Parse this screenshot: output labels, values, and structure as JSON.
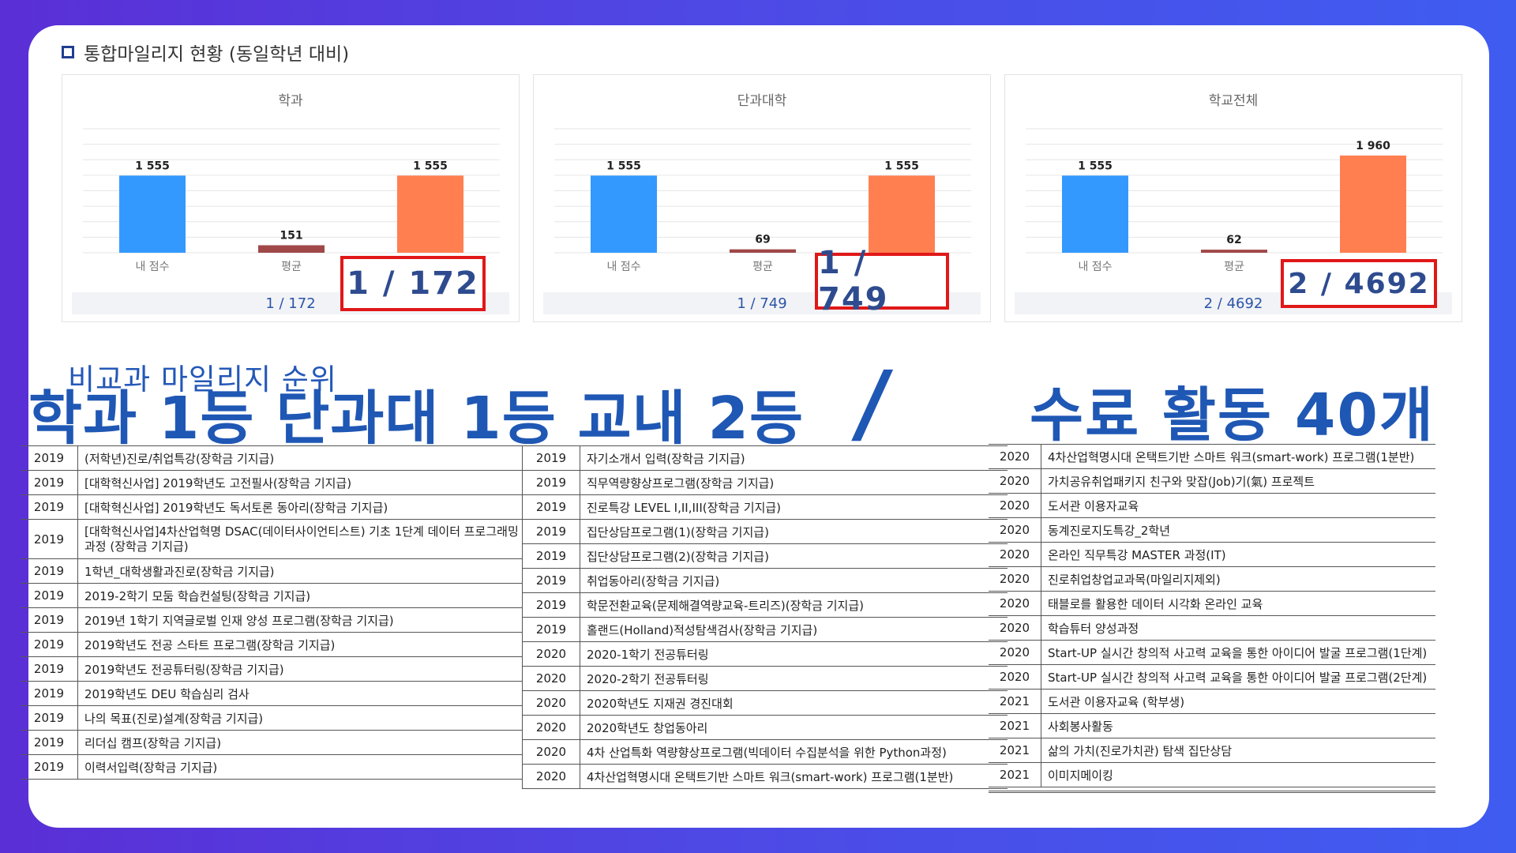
{
  "header": {
    "title": "통합마일리지 현황 (동일학년 대비)"
  },
  "panels": [
    {
      "title": "학과",
      "categories": [
        "내 점수",
        "평균",
        ""
      ],
      "values": [
        1555,
        151,
        1555
      ],
      "value_labels": [
        "1 555",
        "151",
        "1 555"
      ],
      "footer": "1 / 172",
      "rank": "1 / 172"
    },
    {
      "title": "단과대학",
      "categories": [
        "내 점수",
        "평균",
        ""
      ],
      "values": [
        1555,
        69,
        1555
      ],
      "value_labels": [
        "1 555",
        "69",
        "1 555"
      ],
      "footer": "1 / 749",
      "rank": "1 / 749"
    },
    {
      "title": "학교전체",
      "categories": [
        "내 점수",
        "평균",
        ""
      ],
      "values": [
        1555,
        62,
        1960
      ],
      "value_labels": [
        "1 555",
        "62",
        "1 960"
      ],
      "footer": "2 / 4692",
      "rank": "2 / 4692"
    }
  ],
  "chart_data": [
    {
      "type": "bar",
      "title": "학과",
      "categories": [
        "내 점수",
        "평균",
        ""
      ],
      "values": [
        1555,
        151,
        1555
      ],
      "colors": [
        "#3399ff",
        "#a04848",
        "#ff7f50"
      ]
    },
    {
      "type": "bar",
      "title": "단과대학",
      "categories": [
        "내 점수",
        "평균",
        ""
      ],
      "values": [
        1555,
        69,
        1555
      ],
      "colors": [
        "#3399ff",
        "#a04848",
        "#ff7f50"
      ]
    },
    {
      "type": "bar",
      "title": "학교전체",
      "categories": [
        "내 점수",
        "평균",
        ""
      ],
      "values": [
        1555,
        62,
        1960
      ],
      "colors": [
        "#3399ff",
        "#a04848",
        "#ff7f50"
      ]
    }
  ],
  "colors": {
    "mine": "#3399ff",
    "avg": "#a04848",
    "top": "#ff7f50",
    "accent": "#1f57b4",
    "rank_border": "#e01818"
  },
  "subheading": "비교과 마일리지 순위",
  "headline": "학과 1등 단과대 1등 교내 2등",
  "slash": "/",
  "headline_right": "수료 활동 40개",
  "activities_col1": [
    {
      "year": "2019",
      "name": "(저학년)진로/취업특강(장학금 기지급)"
    },
    {
      "year": "2019",
      "name": "[대학혁신사업] 2019학년도 고전필사(장학금 기지급)"
    },
    {
      "year": "2019",
      "name": "[대학혁신사업] 2019학년도 독서토론 동아리(장학금 기지급)"
    },
    {
      "year": "2019",
      "name": "[대학혁신사업]4차산업혁명 DSAC(데이터사이언티스트) 기초 1단계 데이터 프로그래밍 과정 (장학금 기지급)"
    },
    {
      "year": "2019",
      "name": "1학년_대학생활과진로(장학금 기지급)"
    },
    {
      "year": "2019",
      "name": "2019-2학기 모둠 학습컨설팅(장학금 기지급)"
    },
    {
      "year": "2019",
      "name": "2019년 1학기 지역글로벌 인재 양성 프로그램(장학금 기지급)"
    },
    {
      "year": "2019",
      "name": "2019학년도 전공 스타트 프로그램(장학금 기지급)"
    },
    {
      "year": "2019",
      "name": "2019학년도 전공튜터링(장학금 기지급)"
    },
    {
      "year": "2019",
      "name": "2019학년도 DEU 학습심리 검사"
    },
    {
      "year": "2019",
      "name": "나의 목표(진로)설계(장학금 기지급)"
    },
    {
      "year": "2019",
      "name": "리더십 캠프(장학금 기지급)"
    },
    {
      "year": "2019",
      "name": "이력서입력(장학금 기지급)"
    }
  ],
  "activities_col2": [
    {
      "year": "2019",
      "name": "자기소개서 입력(장학금 기지급)"
    },
    {
      "year": "2019",
      "name": "직무역량향상프로그램(장학금 기지급)"
    },
    {
      "year": "2019",
      "name": "진로특강 LEVEL I,II,III(장학금 기지급)"
    },
    {
      "year": "2019",
      "name": "집단상담프로그램(1)(장학금 기지급)"
    },
    {
      "year": "2019",
      "name": "집단상담프로그램(2)(장학금 기지급)"
    },
    {
      "year": "2019",
      "name": "취업동아리(장학금 기지급)"
    },
    {
      "year": "2019",
      "name": "학문전환교육(문제해결역량교육-트리즈)(장학금 기지급)"
    },
    {
      "year": "2019",
      "name": "홀랜드(Holland)적성탐색검사(장학금 기지급)"
    },
    {
      "year": "2020",
      "name": "2020-1학기 전공튜터링"
    },
    {
      "year": "2020",
      "name": "2020-2학기 전공튜터링"
    },
    {
      "year": "2020",
      "name": "2020학년도 지재권 경진대회"
    },
    {
      "year": "2020",
      "name": "2020학년도 창업동아리"
    },
    {
      "year": "2020",
      "name": "4차 산업특화 역량향상프로그램(빅데이터 수집분석을 위한 Python과정)"
    },
    {
      "year": "2020",
      "name": "4차산업혁명시대 온택트기반 스마트 워크(smart-work) 프로그램(1분반)"
    }
  ],
  "activities_col3": [
    {
      "year": "2020",
      "name": "4차산업혁명시대 온택트기반 스마트 워크(smart-work) 프로그램(1분반)"
    },
    {
      "year": "2020",
      "name": "가치공유취업패키지 친구와 맞잡(Job)기(氣) 프로젝트"
    },
    {
      "year": "2020",
      "name": "도서관 이용자교육"
    },
    {
      "year": "2020",
      "name": "동계진로지도특강_2학년"
    },
    {
      "year": "2020",
      "name": "온라인 직무특강 MASTER 과정(IT)"
    },
    {
      "year": "2020",
      "name": "진로취업창업교과목(마일리지제외)"
    },
    {
      "year": "2020",
      "name": "태블로를 활용한 데이터 시각화 온라인 교육"
    },
    {
      "year": "2020",
      "name": "학습튜터 양성과정"
    },
    {
      "year": "2020",
      "name": "Start-UP 실시간 창의적 사고력 교육을 통한 아이디어 발굴 프로그램(1단계)"
    },
    {
      "year": "2020",
      "name": "Start-UP 실시간 창의적 사고력 교육을 통한 아이디어 발굴 프로그램(2단계)"
    },
    {
      "year": "2021",
      "name": "도서관 이용자교육 (학부생)"
    },
    {
      "year": "2021",
      "name": "사회봉사활동"
    },
    {
      "year": "2021",
      "name": "삶의 가치(진로가치관) 탐색 집단상담"
    },
    {
      "year": "2021",
      "name": "이미지메이킹"
    }
  ]
}
